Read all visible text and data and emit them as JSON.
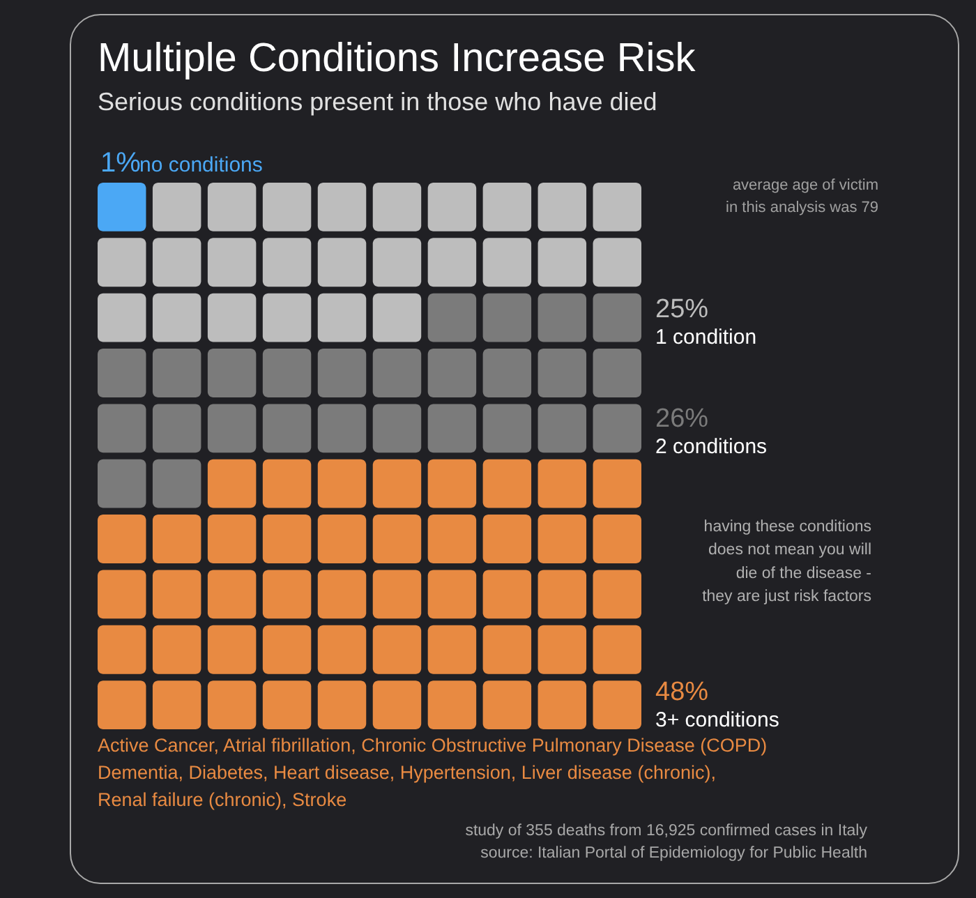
{
  "chart_data": {
    "type": "other",
    "title": "Multiple Conditions Increase Risk",
    "subtitle": "Serious conditions present in those who have died",
    "categories": [
      "no conditions",
      "1 condition",
      "2 conditions",
      "3+ conditions"
    ],
    "values": [
      1,
      25,
      26,
      48
    ],
    "colors": [
      "#4ba8f5",
      "#bdbdbd",
      "#7b7b7b",
      "#e88a42"
    ],
    "value_labels": [
      "1%",
      "25%",
      "26%",
      "48%"
    ],
    "annotations": [
      "average age of victim\nin this analysis was 79",
      "having these conditions\ndoes not mean you will\ndie of the disease -\nthey are just risk factors",
      "Active Cancer, Atrial fibrillation, Chronic Obstructive Pulmonary Disease (COPD)\nDementia, Diabetes, Heart disease, Hypertension, Liver disease (chronic),\nRenal failure (chronic), Stroke",
      "study of 355 deaths from 16,925 confirmed cases in Italy",
      "source: Italian Portal of Epidemiology for Public Health"
    ]
  }
}
